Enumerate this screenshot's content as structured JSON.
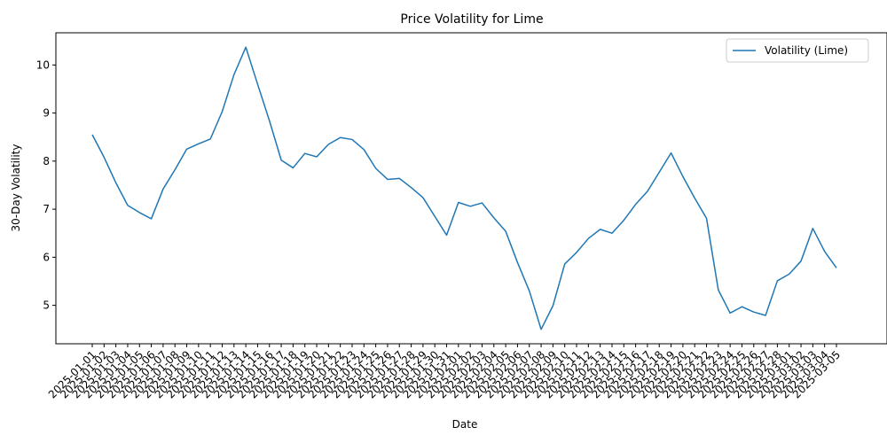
{
  "chart_data": {
    "type": "line",
    "title": "Price Volatility for Lime",
    "xlabel": "Date",
    "ylabel": "30-Day Volatility",
    "ylim": [
      4.2,
      10.67
    ],
    "yticks": [
      5,
      6,
      7,
      8,
      9,
      10
    ],
    "grid": false,
    "legend_position": "top-right",
    "x": [
      "2025-01-01",
      "2025-01-02",
      "2025-01-03",
      "2025-01-04",
      "2025-01-05",
      "2025-01-06",
      "2025-01-07",
      "2025-01-08",
      "2025-01-09",
      "2025-01-10",
      "2025-01-11",
      "2025-01-12",
      "2025-01-13",
      "2025-01-14",
      "2025-01-15",
      "2025-01-16",
      "2025-01-17",
      "2025-01-18",
      "2025-01-19",
      "2025-01-20",
      "2025-01-21",
      "2025-01-22",
      "2025-01-23",
      "2025-01-24",
      "2025-01-25",
      "2025-01-26",
      "2025-01-27",
      "2025-01-28",
      "2025-01-29",
      "2025-01-30",
      "2025-01-31",
      "2025-02-01",
      "2025-02-02",
      "2025-02-03",
      "2025-02-04",
      "2025-02-05",
      "2025-02-06",
      "2025-02-07",
      "2025-02-08",
      "2025-02-09",
      "2025-02-10",
      "2025-02-11",
      "2025-02-12",
      "2025-02-13",
      "2025-02-14",
      "2025-02-15",
      "2025-02-16",
      "2025-02-17",
      "2025-02-18",
      "2025-02-19",
      "2025-02-20",
      "2025-02-21",
      "2025-02-22",
      "2025-02-23",
      "2025-02-24",
      "2025-02-25",
      "2025-02-26",
      "2025-02-27",
      "2025-02-28",
      "2025-03-01",
      "2025-03-02",
      "2025-03-03",
      "2025-03-04",
      "2025-03-05"
    ],
    "series": [
      {
        "name": "Volatility (Lime)",
        "color": "#1f77b4",
        "values": [
          8.55,
          8.08,
          7.55,
          7.08,
          6.93,
          6.8,
          7.42,
          7.82,
          8.25,
          8.36,
          8.46,
          9.03,
          9.8,
          10.37,
          9.6,
          8.84,
          8.02,
          7.86,
          8.16,
          8.09,
          8.35,
          8.49,
          8.45,
          8.24,
          7.85,
          7.62,
          7.64,
          7.45,
          7.24,
          6.85,
          6.46,
          7.14,
          7.06,
          7.13,
          6.82,
          6.54,
          5.89,
          5.3,
          4.5,
          4.99,
          5.86,
          6.1,
          6.39,
          6.58,
          6.5,
          6.77,
          7.1,
          7.37,
          7.77,
          8.17,
          7.68,
          7.23,
          6.81,
          5.32,
          4.84,
          4.97,
          4.86,
          4.79,
          5.51,
          5.65,
          5.92,
          6.6,
          6.12,
          5.78
        ]
      }
    ]
  }
}
